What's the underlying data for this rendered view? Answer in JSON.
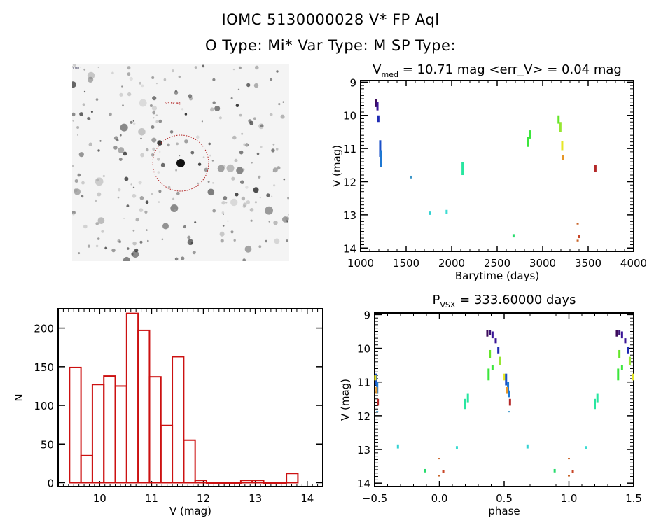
{
  "header": {
    "title_line1": "IOMC 5130000028    V* FP Aql",
    "title_line2": "O Type: Mi*   Var Type: M   SP Type:"
  },
  "image_panel": {
    "label_top_left": "IOMC ...",
    "label_target": "V* FP Aql",
    "label_bottom_left": "...",
    "label_bottom_center": "...",
    "circle_color": "#b01c1c"
  },
  "chart_data": [
    {
      "type": "scatter",
      "id": "lightcurve",
      "title_main": "V",
      "title_sub": "med",
      "title_rest": " = 10.71 mag <err_V> = 0.04 mag",
      "xlabel": "Barytime (days)",
      "ylabel": "V (mag)",
      "xlim": [
        1000,
        4000
      ],
      "ylim": [
        14.1,
        8.95
      ],
      "xticks": [
        1000,
        1500,
        2000,
        2500,
        3000,
        3500,
        4000
      ],
      "xtick_labels": [
        "1000",
        "1500",
        "2000",
        "2500",
        "3000",
        "3500",
        "4000"
      ],
      "yticks": [
        9,
        10,
        11,
        12,
        13,
        14
      ],
      "ytick_labels": [
        "9",
        "10",
        "11",
        "12",
        "13",
        "14"
      ],
      "segments": [
        {
          "x": 1170,
          "y1": 9.5,
          "y2": 9.75,
          "color": "#3c0a5a"
        },
        {
          "x": 1185,
          "y1": 9.6,
          "y2": 9.85,
          "color": "#3a1496"
        },
        {
          "x": 1195,
          "y1": 10.0,
          "y2": 10.2,
          "color": "#1e2ab4"
        },
        {
          "x": 1215,
          "y1": 10.75,
          "y2": 11.25,
          "color": "#1a50c8"
        },
        {
          "x": 1225,
          "y1": 11.05,
          "y2": 11.55,
          "color": "#1e78d2"
        },
        {
          "x": 1555,
          "y1": 11.82,
          "y2": 11.9,
          "color": "#3c96c8"
        },
        {
          "x": 1760,
          "y1": 12.9,
          "y2": 13.0,
          "color": "#32d2d2"
        },
        {
          "x": 1945,
          "y1": 12.85,
          "y2": 12.97,
          "color": "#3cdcd2"
        },
        {
          "x": 2120,
          "y1": 11.4,
          "y2": 11.8,
          "color": "#28e6a0"
        },
        {
          "x": 2680,
          "y1": 13.58,
          "y2": 13.68,
          "color": "#28dc6e"
        },
        {
          "x": 2840,
          "y1": 10.65,
          "y2": 10.95,
          "color": "#3ce63c"
        },
        {
          "x": 2860,
          "y1": 10.45,
          "y2": 10.7,
          "color": "#3ce63c"
        },
        {
          "x": 3175,
          "y1": 10.0,
          "y2": 10.25,
          "color": "#64e628"
        },
        {
          "x": 3195,
          "y1": 10.2,
          "y2": 10.5,
          "color": "#96e632"
        },
        {
          "x": 3215,
          "y1": 10.78,
          "y2": 11.05,
          "color": "#e6e628"
        },
        {
          "x": 3222,
          "y1": 11.2,
          "y2": 11.35,
          "color": "#e69628"
        },
        {
          "x": 3385,
          "y1": 13.25,
          "y2": 13.28,
          "color": "#c8642a"
        },
        {
          "x": 3400,
          "y1": 13.6,
          "y2": 13.7,
          "color": "#c84628"
        },
        {
          "x": 3385,
          "y1": 13.75,
          "y2": 13.8,
          "color": "#c86428"
        },
        {
          "x": 3580,
          "y1": 11.5,
          "y2": 11.7,
          "color": "#b42828"
        }
      ]
    },
    {
      "type": "bar",
      "id": "histogram",
      "title": "",
      "xlabel": "V (mag)",
      "ylabel": "N",
      "xlim": [
        9.2,
        14.3
      ],
      "ylim": [
        -5,
        225
      ],
      "xticks": [
        10,
        11,
        12,
        13,
        14
      ],
      "xtick_labels": [
        "10",
        "11",
        "12",
        "13",
        "14"
      ],
      "yticks": [
        0,
        50,
        100,
        150,
        200
      ],
      "ytick_labels": [
        "0",
        "50",
        "100",
        "150",
        "200"
      ],
      "bin_edges": [
        9.42,
        9.64,
        9.86,
        10.08,
        10.3,
        10.52,
        10.74,
        10.96,
        11.18,
        11.4,
        11.62,
        11.84,
        12.06,
        12.28,
        12.5,
        12.72,
        12.94,
        13.16,
        13.38,
        13.6,
        13.82
      ],
      "values": [
        149,
        35,
        127,
        138,
        125,
        219,
        197,
        137,
        74,
        163,
        55,
        3,
        0,
        0,
        0,
        3,
        3,
        0,
        0,
        12
      ],
      "bar_color": "#cc1111"
    },
    {
      "type": "scatter",
      "id": "phased",
      "title_main": "P",
      "title_sub": "VSX",
      "title_rest": " = 333.60000 days",
      "xlabel": "phase",
      "ylabel": "V (mag)",
      "xlim": [
        -0.5,
        1.5
      ],
      "ylim": [
        14.1,
        8.95
      ],
      "xticks": [
        -0.5,
        0.0,
        0.5,
        1.0,
        1.5
      ],
      "xtick_labels": [
        "−0.5",
        "0.0",
        "0.5",
        "1.0",
        "1.5"
      ],
      "yticks": [
        9,
        10,
        11,
        12,
        13,
        14
      ],
      "ytick_labels": [
        "9",
        "10",
        "11",
        "12",
        "13",
        "14"
      ],
      "period_days": 333.6,
      "segments": [
        {
          "x": -0.49,
          "y1": 10.75,
          "y2": 11.1,
          "color": "#1a50c8"
        },
        {
          "x": -0.48,
          "y1": 11.0,
          "y2": 11.35,
          "color": "#1e78d2"
        },
        {
          "x": -0.495,
          "y1": 10.8,
          "y2": 10.95,
          "color": "#e6e628"
        },
        {
          "x": -0.485,
          "y1": 11.15,
          "y2": 11.35,
          "color": "#e69628"
        },
        {
          "x": -0.475,
          "y1": 11.5,
          "y2": 11.7,
          "color": "#b42828"
        },
        {
          "x": -0.48,
          "y1": 11.86,
          "y2": 11.9,
          "color": "#3c96c8"
        },
        {
          "x": -0.32,
          "y1": 12.85,
          "y2": 12.97,
          "color": "#32d2d2"
        },
        {
          "x": -0.11,
          "y1": 13.58,
          "y2": 13.68,
          "color": "#28dc6e"
        },
        {
          "x": 0.0,
          "y1": 13.25,
          "y2": 13.28,
          "color": "#c8642a"
        },
        {
          "x": 0.0,
          "y1": 13.75,
          "y2": 13.8,
          "color": "#c86428"
        },
        {
          "x": 0.03,
          "y1": 13.62,
          "y2": 13.7,
          "color": "#c84628"
        },
        {
          "x": 0.135,
          "y1": 12.9,
          "y2": 12.98,
          "color": "#3cdcd2"
        },
        {
          "x": 0.2,
          "y1": 11.5,
          "y2": 11.8,
          "color": "#28e6a0"
        },
        {
          "x": 0.22,
          "y1": 11.35,
          "y2": 11.6,
          "color": "#28e6a0"
        },
        {
          "x": 0.37,
          "y1": 9.45,
          "y2": 9.65,
          "color": "#3c0a5a"
        },
        {
          "x": 0.39,
          "y1": 9.45,
          "y2": 9.6,
          "color": "#3c1478"
        },
        {
          "x": 0.41,
          "y1": 9.5,
          "y2": 9.7,
          "color": "#3a1496"
        },
        {
          "x": 0.435,
          "y1": 9.7,
          "y2": 9.85,
          "color": "#3a1496"
        },
        {
          "x": 0.455,
          "y1": 9.95,
          "y2": 10.15,
          "color": "#1e2ab4"
        },
        {
          "x": 0.39,
          "y1": 10.05,
          "y2": 10.3,
          "color": "#64e628"
        },
        {
          "x": 0.41,
          "y1": 10.5,
          "y2": 10.65,
          "color": "#3ce63c"
        },
        {
          "x": 0.38,
          "y1": 10.6,
          "y2": 10.95,
          "color": "#3ce63c"
        },
        {
          "x": 0.47,
          "y1": 10.25,
          "y2": 10.5,
          "color": "#96e632"
        },
        {
          "x": 0.5,
          "y1": 10.75,
          "y2": 10.95,
          "color": "#e6e628"
        },
        {
          "x": 0.515,
          "y1": 10.75,
          "y2": 11.1,
          "color": "#1a50c8"
        },
        {
          "x": 0.53,
          "y1": 11.0,
          "y2": 11.3,
          "color": "#1e78d2"
        },
        {
          "x": 0.52,
          "y1": 11.15,
          "y2": 11.35,
          "color": "#e69628"
        },
        {
          "x": 0.54,
          "y1": 11.25,
          "y2": 11.45,
          "color": "#1e78d2"
        },
        {
          "x": 0.545,
          "y1": 11.5,
          "y2": 11.7,
          "color": "#b42828"
        },
        {
          "x": 0.54,
          "y1": 11.86,
          "y2": 11.9,
          "color": "#3c96c8"
        },
        {
          "x": 0.68,
          "y1": 12.85,
          "y2": 12.97,
          "color": "#32d2d2"
        },
        {
          "x": 0.89,
          "y1": 13.58,
          "y2": 13.68,
          "color": "#28dc6e"
        },
        {
          "x": 1.0,
          "y1": 13.25,
          "y2": 13.28,
          "color": "#c8642a"
        },
        {
          "x": 1.0,
          "y1": 13.75,
          "y2": 13.8,
          "color": "#c86428"
        },
        {
          "x": 1.03,
          "y1": 13.62,
          "y2": 13.7,
          "color": "#c84628"
        },
        {
          "x": 1.135,
          "y1": 12.9,
          "y2": 12.98,
          "color": "#3cdcd2"
        },
        {
          "x": 1.2,
          "y1": 11.5,
          "y2": 11.8,
          "color": "#28e6a0"
        },
        {
          "x": 1.22,
          "y1": 11.35,
          "y2": 11.6,
          "color": "#28e6a0"
        },
        {
          "x": 1.37,
          "y1": 9.45,
          "y2": 9.65,
          "color": "#3c0a5a"
        },
        {
          "x": 1.39,
          "y1": 9.45,
          "y2": 9.6,
          "color": "#3c1478"
        },
        {
          "x": 1.41,
          "y1": 9.5,
          "y2": 9.7,
          "color": "#3a1496"
        },
        {
          "x": 1.435,
          "y1": 9.7,
          "y2": 9.85,
          "color": "#3a1496"
        },
        {
          "x": 1.455,
          "y1": 9.95,
          "y2": 10.15,
          "color": "#1e2ab4"
        },
        {
          "x": 1.39,
          "y1": 10.05,
          "y2": 10.3,
          "color": "#64e628"
        },
        {
          "x": 1.41,
          "y1": 10.5,
          "y2": 10.65,
          "color": "#3ce63c"
        },
        {
          "x": 1.38,
          "y1": 10.6,
          "y2": 10.95,
          "color": "#3ce63c"
        },
        {
          "x": 1.47,
          "y1": 10.25,
          "y2": 10.5,
          "color": "#96e632"
        },
        {
          "x": 1.495,
          "y1": 10.75,
          "y2": 10.95,
          "color": "#e6e628"
        }
      ]
    }
  ]
}
